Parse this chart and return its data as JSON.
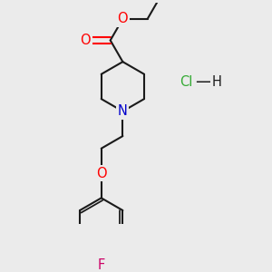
{
  "background_color": "#ebebeb",
  "bond_color": "#1a1a1a",
  "bond_width": 1.5,
  "atom_colors": {
    "O": "#ff0000",
    "N": "#0000cc",
    "F": "#cc0066",
    "C": "#1a1a1a",
    "Cl": "#33aa33",
    "H": "#1a1a1a"
  },
  "font_size": 10.5
}
